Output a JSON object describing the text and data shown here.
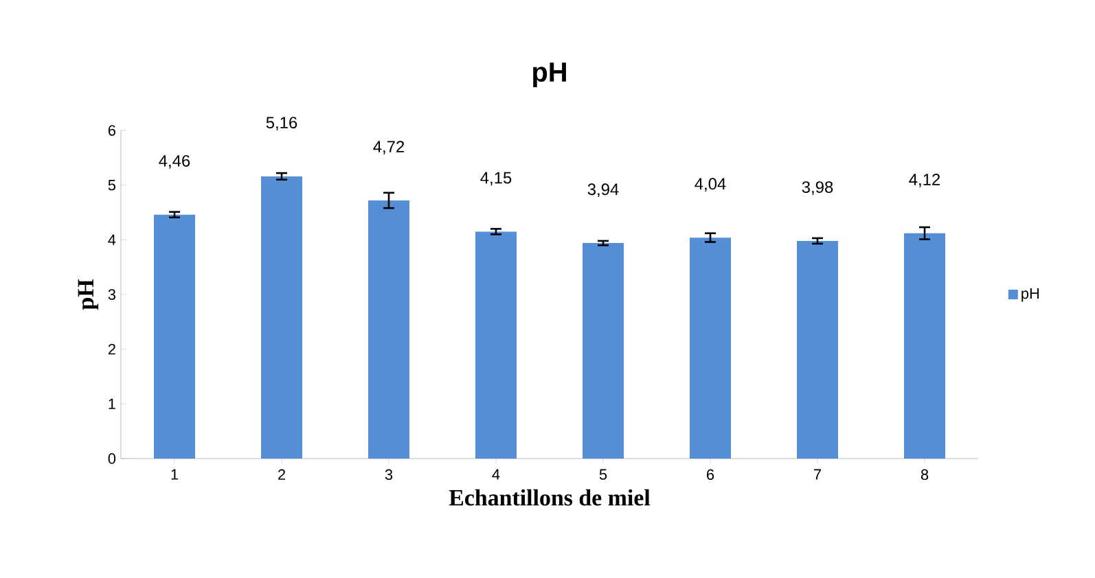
{
  "chart_data": {
    "type": "bar",
    "title": "pH",
    "xlabel": "Echantillons de miel",
    "ylabel": "pH",
    "categories": [
      "1",
      "2",
      "3",
      "4",
      "5",
      "6",
      "7",
      "8"
    ],
    "series": [
      {
        "name": "pH",
        "color": "#558ed5",
        "values": [
          4.46,
          5.16,
          4.72,
          4.15,
          3.94,
          4.04,
          3.98,
          4.12
        ],
        "errors": [
          0.05,
          0.06,
          0.14,
          0.05,
          0.04,
          0.08,
          0.05,
          0.11
        ],
        "value_labels": [
          "4,46",
          "5,16",
          "4,72",
          "4,15",
          "3,94",
          "4,04",
          "3,98",
          "4,12"
        ]
      }
    ],
    "ylim": [
      0,
      6
    ],
    "yticks": [
      0,
      1,
      2,
      3,
      4,
      5,
      6
    ],
    "grid": false,
    "legend": "right"
  }
}
